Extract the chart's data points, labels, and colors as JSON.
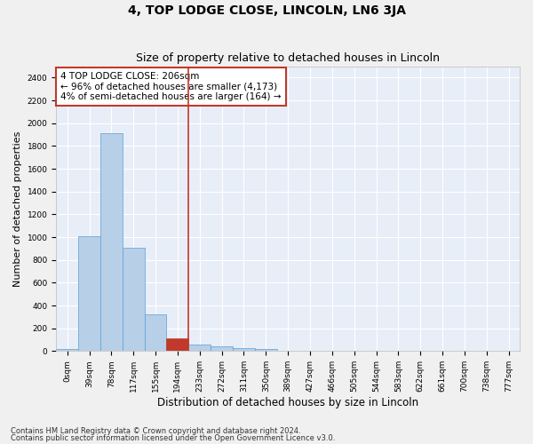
{
  "title": "4, TOP LODGE CLOSE, LINCOLN, LN6 3JA",
  "subtitle": "Size of property relative to detached houses in Lincoln",
  "xlabel": "Distribution of detached houses by size in Lincoln",
  "ylabel": "Number of detached properties",
  "bar_color": "#b8cfe8",
  "bar_edge_color": "#5a9fd4",
  "highlight_bar_color": "#c0392b",
  "highlight_bar_edge_color": "#c0392b",
  "bg_color": "#e8eef8",
  "grid_color": "#ffffff",
  "fig_bg_color": "#f0f0f0",
  "categories": [
    "0sqm",
    "39sqm",
    "78sqm",
    "117sqm",
    "155sqm",
    "194sqm",
    "233sqm",
    "272sqm",
    "311sqm",
    "350sqm",
    "389sqm",
    "427sqm",
    "466sqm",
    "505sqm",
    "544sqm",
    "583sqm",
    "622sqm",
    "661sqm",
    "700sqm",
    "738sqm",
    "777sqm"
  ],
  "values": [
    20,
    1010,
    1910,
    910,
    320,
    110,
    60,
    45,
    28,
    18,
    0,
    0,
    0,
    0,
    0,
    0,
    0,
    0,
    0,
    0,
    0
  ],
  "highlight_index": 5,
  "vline_position": 5.5,
  "annotation_title": "4 TOP LODGE CLOSE: 206sqm",
  "annotation_line1": "← 96% of detached houses are smaller (4,173)",
  "annotation_line2": "4% of semi-detached houses are larger (164) →",
  "annotation_box_color": "#ffffff",
  "annotation_box_edge_color": "#c0392b",
  "ylim": [
    0,
    2500
  ],
  "yticks": [
    0,
    200,
    400,
    600,
    800,
    1000,
    1200,
    1400,
    1600,
    1800,
    2000,
    2200,
    2400
  ],
  "footnote1": "Contains HM Land Registry data © Crown copyright and database right 2024.",
  "footnote2": "Contains public sector information licensed under the Open Government Licence v3.0.",
  "title_fontsize": 10,
  "subtitle_fontsize": 9,
  "annot_fontsize": 7.5,
  "tick_fontsize": 6.5,
  "ylabel_fontsize": 8,
  "xlabel_fontsize": 8.5,
  "footnote_fontsize": 6
}
